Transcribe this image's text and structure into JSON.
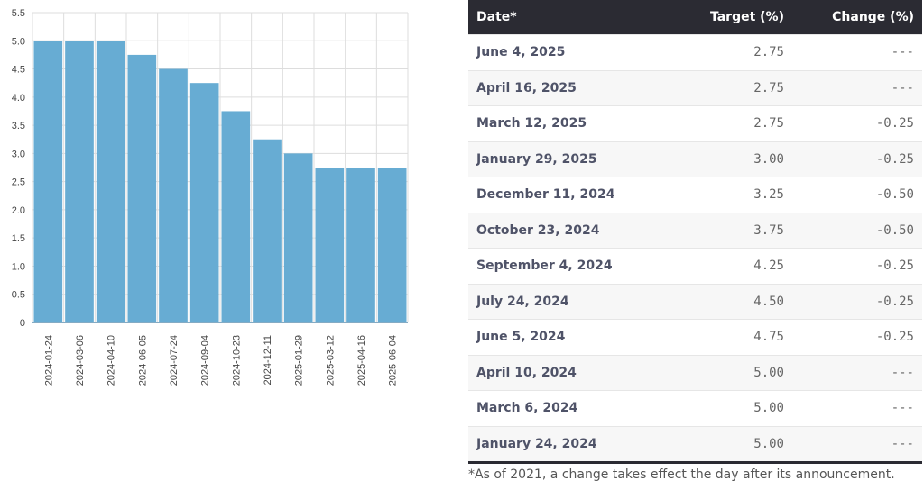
{
  "chart_data": {
    "type": "bar",
    "categories": [
      "2024-01-24",
      "2024-03-06",
      "2024-04-10",
      "2024-06-05",
      "2024-07-24",
      "2024-09-04",
      "2024-10-23",
      "2024-12-11",
      "2025-01-29",
      "2025-03-12",
      "2025-04-16",
      "2025-06-04"
    ],
    "values": [
      5.0,
      5.0,
      5.0,
      4.75,
      4.5,
      4.25,
      3.75,
      3.25,
      3.0,
      2.75,
      2.75,
      2.75
    ],
    "ylim": [
      0,
      5.5
    ],
    "yticks": [
      "0",
      "0.5",
      "1.0",
      "1.5",
      "2.0",
      "2.5",
      "3.0",
      "3.5",
      "4.0",
      "4.5",
      "5.0",
      "5.5"
    ],
    "grid": true,
    "bar_color": "#67acd3"
  },
  "table": {
    "headers": [
      "Date*",
      "Target (%)",
      "Change (%)"
    ],
    "rows": [
      [
        "June 4, 2025",
        "2.75",
        "---"
      ],
      [
        "April 16, 2025",
        "2.75",
        "---"
      ],
      [
        "March 12, 2025",
        "2.75",
        "-0.25"
      ],
      [
        "January 29, 2025",
        "3.00",
        "-0.25"
      ],
      [
        "December 11, 2024",
        "3.25",
        "-0.50"
      ],
      [
        "October 23, 2024",
        "3.75",
        "-0.50"
      ],
      [
        "September 4, 2024",
        "4.25",
        "-0.25"
      ],
      [
        "July 24, 2024",
        "4.50",
        "-0.25"
      ],
      [
        "June 5, 2024",
        "4.75",
        "-0.25"
      ],
      [
        "April 10, 2024",
        "5.00",
        "---"
      ],
      [
        "March 6, 2024",
        "5.00",
        "---"
      ],
      [
        "January 24, 2024",
        "5.00",
        "---"
      ]
    ],
    "header_color": "#2b2b33"
  },
  "footnote": "*As of 2021, a change takes effect the day after its announcement."
}
